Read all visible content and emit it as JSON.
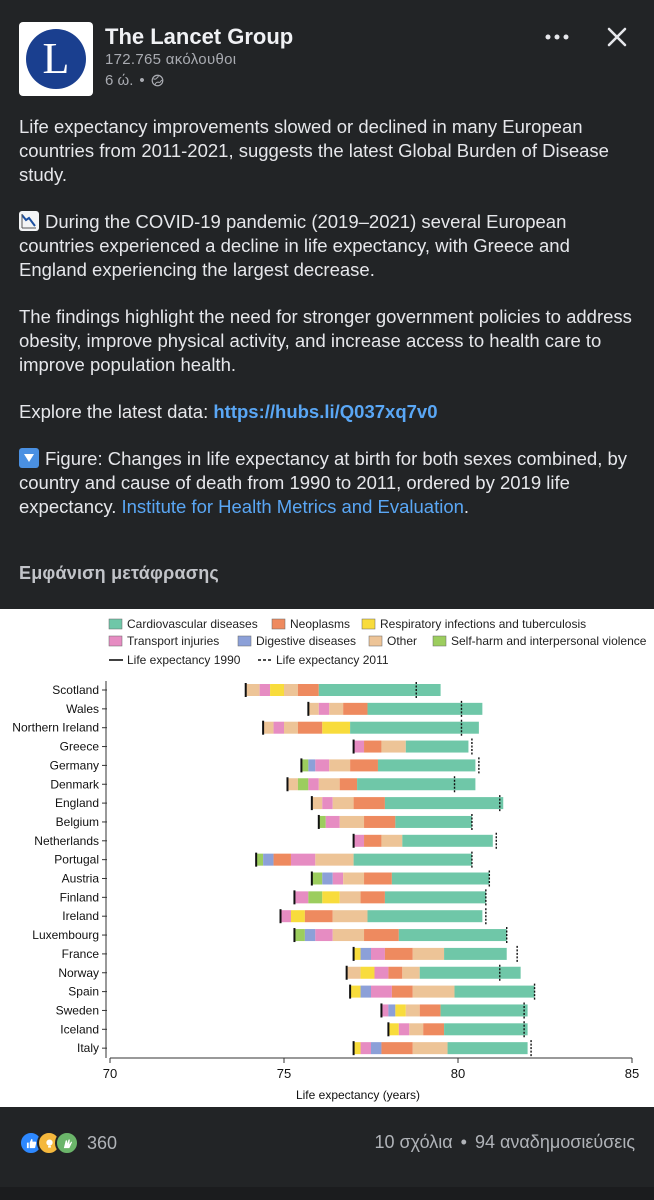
{
  "header": {
    "page_name": "The Lancet Group",
    "followers": "172.765 ακόλουθοι",
    "time": "6 ώ.",
    "separator": "•",
    "logo_letter": "L"
  },
  "post": {
    "p1": "Life expectancy improvements slowed or declined in many European countries from 2011-2021, suggests the latest Global Burden of Disease study.",
    "p2": "During the COVID-19 pandemic (2019–2021) several European countries experienced a decline in life expectancy, with Greece and England experiencing the largest decrease.",
    "p3": "The findings highlight the need for stronger government policies to address obesity, improve physical activity, and increase access to health care to improve population health.",
    "p4_prefix": "Explore the latest data: ",
    "p4_link": "https://hubs.li/Q037xq7v0",
    "p5_text": "Figure: Changes in life expectancy at birth for both sexes combined, by country and cause of death from 1990 to 2011, ordered by 2019 life expectancy.",
    "p5_link": "Institute for Health Metrics and Evaluation",
    "p5_end": ".",
    "see_translation": "Εμφάνιση μετάφρασης"
  },
  "chart_data": {
    "type": "bar",
    "xlabel": "Life expectancy (years)",
    "xlim": [
      70,
      85
    ],
    "x_ticks": [
      70,
      75,
      80,
      85
    ],
    "legend": [
      {
        "name": "Cardiovascular diseases",
        "color": "#6fc7a8"
      },
      {
        "name": "Neoplasms",
        "color": "#ee8a5f"
      },
      {
        "name": "Respiratory infections and tuberculosis",
        "color": "#f8dc3c"
      },
      {
        "name": "Transport injuries",
        "color": "#e68cc2"
      },
      {
        "name": "Digestive diseases",
        "color": "#8ca0d8"
      },
      {
        "name": "Other",
        "color": "#edc497"
      },
      {
        "name": "Self-harm and interpersonal violence",
        "color": "#9ccd5e"
      },
      {
        "name": "Life expectancy 1990",
        "line": "solid"
      },
      {
        "name": "Life expectancy 2011",
        "line": "dashed"
      }
    ],
    "countries": [
      {
        "name": "Scotland",
        "le1990": 73.9,
        "le2011": 78.8,
        "segments": [
          [
            "Other",
            0.4
          ],
          [
            "Transport injuries",
            0.3
          ],
          [
            "Respiratory infections and tuberculosis",
            0.4
          ],
          [
            "Other",
            0.4
          ],
          [
            "Neoplasms",
            0.6
          ],
          [
            "Cardiovascular diseases",
            3.5
          ]
        ]
      },
      {
        "name": "Wales",
        "le1990": 75.7,
        "le2011": 80.1,
        "segments": [
          [
            "Other",
            0.3
          ],
          [
            "Transport injuries",
            0.3
          ],
          [
            "Other",
            0.4
          ],
          [
            "Neoplasms",
            0.7
          ],
          [
            "Cardiovascular diseases",
            3.3
          ]
        ]
      },
      {
        "name": "Northern Ireland",
        "le1990": 74.4,
        "le2011": 80.1,
        "segments": [
          [
            "Other",
            0.3
          ],
          [
            "Transport injuries",
            0.3
          ],
          [
            "Other",
            0.4
          ],
          [
            "Neoplasms",
            0.7
          ],
          [
            "Respiratory infections and tuberculosis",
            0.8
          ],
          [
            "Cardiovascular diseases",
            3.7
          ]
        ]
      },
      {
        "name": "Greece",
        "le1990": 77.0,
        "le2011": 80.4,
        "segments": [
          [
            "Transport injuries",
            0.3
          ],
          [
            "Neoplasms",
            0.5
          ],
          [
            "Other",
            0.7
          ],
          [
            "Cardiovascular diseases",
            1.8
          ]
        ]
      },
      {
        "name": "Germany",
        "le1990": 75.5,
        "le2011": 80.6,
        "segments": [
          [
            "Self-harm and interpersonal violence",
            0.2
          ],
          [
            "Digestive diseases",
            0.2
          ],
          [
            "Transport injuries",
            0.4
          ],
          [
            "Other",
            0.6
          ],
          [
            "Neoplasms",
            0.8
          ],
          [
            "Cardiovascular diseases",
            2.8
          ]
        ]
      },
      {
        "name": "Denmark",
        "le1990": 75.1,
        "le2011": 79.9,
        "segments": [
          [
            "Other",
            0.3
          ],
          [
            "Self-harm and interpersonal violence",
            0.3
          ],
          [
            "Transport injuries",
            0.3
          ],
          [
            "Other",
            0.6
          ],
          [
            "Neoplasms",
            0.5
          ],
          [
            "Cardiovascular diseases",
            3.4
          ]
        ]
      },
      {
        "name": "England",
        "le1990": 75.8,
        "le2011": 81.2,
        "segments": [
          [
            "Other",
            0.3
          ],
          [
            "Transport injuries",
            0.3
          ],
          [
            "Other",
            0.6
          ],
          [
            "Neoplasms",
            0.9
          ],
          [
            "Cardiovascular diseases",
            3.4
          ]
        ]
      },
      {
        "name": "Belgium",
        "le1990": 76.0,
        "le2011": 80.4,
        "segments": [
          [
            "Self-harm and interpersonal violence",
            0.2
          ],
          [
            "Transport injuries",
            0.4
          ],
          [
            "Other",
            0.7
          ],
          [
            "Neoplasms",
            0.9
          ],
          [
            "Cardiovascular diseases",
            2.2
          ]
        ]
      },
      {
        "name": "Netherlands",
        "le1990": 77.0,
        "le2011": 81.1,
        "segments": [
          [
            "Transport injuries",
            0.3
          ],
          [
            "Neoplasms",
            0.5
          ],
          [
            "Other",
            0.6
          ],
          [
            "Cardiovascular diseases",
            2.6
          ]
        ]
      },
      {
        "name": "Portugal",
        "le1990": 74.2,
        "le2011": 80.4,
        "segments": [
          [
            "Self-harm and interpersonal violence",
            0.2
          ],
          [
            "Digestive diseases",
            0.3
          ],
          [
            "Neoplasms",
            0.5
          ],
          [
            "Transport injuries",
            0.7
          ],
          [
            "Other",
            1.1
          ],
          [
            "Cardiovascular diseases",
            3.4
          ]
        ]
      },
      {
        "name": "Austria",
        "le1990": 75.8,
        "le2011": 80.9,
        "segments": [
          [
            "Self-harm and interpersonal violence",
            0.3
          ],
          [
            "Digestive diseases",
            0.3
          ],
          [
            "Transport injuries",
            0.3
          ],
          [
            "Other",
            0.6
          ],
          [
            "Neoplasms",
            0.8
          ],
          [
            "Cardiovascular diseases",
            2.8
          ]
        ]
      },
      {
        "name": "Finland",
        "le1990": 75.3,
        "le2011": 80.8,
        "segments": [
          [
            "Transport injuries",
            0.4
          ],
          [
            "Self-harm and interpersonal violence",
            0.4
          ],
          [
            "Respiratory infections and tuberculosis",
            0.5
          ],
          [
            "Other",
            0.6
          ],
          [
            "Neoplasms",
            0.7
          ],
          [
            "Cardiovascular diseases",
            2.9
          ]
        ]
      },
      {
        "name": "Ireland",
        "le1990": 74.9,
        "le2011": 80.8,
        "segments": [
          [
            "Transport injuries",
            0.3
          ],
          [
            "Respiratory infections and tuberculosis",
            0.4
          ],
          [
            "Neoplasms",
            0.8
          ],
          [
            "Other",
            1.0
          ],
          [
            "Cardiovascular diseases",
            3.3
          ]
        ]
      },
      {
        "name": "Luxembourg",
        "le1990": 75.3,
        "le2011": 81.4,
        "segments": [
          [
            "Self-harm and interpersonal violence",
            0.3
          ],
          [
            "Digestive diseases",
            0.3
          ],
          [
            "Transport injuries",
            0.5
          ],
          [
            "Other",
            0.9
          ],
          [
            "Neoplasms",
            1.0
          ],
          [
            "Cardiovascular diseases",
            3.1
          ]
        ]
      },
      {
        "name": "France",
        "le1990": 77.0,
        "le2011": 81.7,
        "segments": [
          [
            "Respiratory infections and tuberculosis",
            0.2
          ],
          [
            "Digestive diseases",
            0.3
          ],
          [
            "Transport injuries",
            0.4
          ],
          [
            "Neoplasms",
            0.8
          ],
          [
            "Other",
            0.9
          ],
          [
            "Cardiovascular diseases",
            1.8
          ]
        ]
      },
      {
        "name": "Norway",
        "le1990": 76.8,
        "le2011": 81.2,
        "segments": [
          [
            "Other",
            0.4
          ],
          [
            "Respiratory infections and tuberculosis",
            0.4
          ],
          [
            "Transport injuries",
            0.4
          ],
          [
            "Neoplasms",
            0.4
          ],
          [
            "Other",
            0.5
          ],
          [
            "Cardiovascular diseases",
            2.9
          ]
        ]
      },
      {
        "name": "Spain",
        "le1990": 76.9,
        "le2011": 82.2,
        "segments": [
          [
            "Respiratory infections and tuberculosis",
            0.3
          ],
          [
            "Digestive diseases",
            0.3
          ],
          [
            "Transport injuries",
            0.6
          ],
          [
            "Neoplasms",
            0.6
          ],
          [
            "Other",
            1.2
          ],
          [
            "Cardiovascular diseases",
            2.3
          ]
        ]
      },
      {
        "name": "Sweden",
        "le1990": 77.8,
        "le2011": 81.9,
        "segments": [
          [
            "Transport injuries",
            0.2
          ],
          [
            "Digestive diseases",
            0.2
          ],
          [
            "Respiratory infections and tuberculosis",
            0.3
          ],
          [
            "Other",
            0.4
          ],
          [
            "Neoplasms",
            0.6
          ],
          [
            "Cardiovascular diseases",
            2.5
          ]
        ]
      },
      {
        "name": "Iceland",
        "le1990": 78.0,
        "le2011": 81.9,
        "segments": [
          [
            "Respiratory infections and tuberculosis",
            0.3
          ],
          [
            "Transport injuries",
            0.3
          ],
          [
            "Other",
            0.4
          ],
          [
            "Neoplasms",
            0.6
          ],
          [
            "Cardiovascular diseases",
            2.4
          ]
        ]
      },
      {
        "name": "Italy",
        "le1990": 77.0,
        "le2011": 82.1,
        "segments": [
          [
            "Respiratory infections and tuberculosis",
            0.2
          ],
          [
            "Transport injuries",
            0.3
          ],
          [
            "Digestive diseases",
            0.3
          ],
          [
            "Neoplasms",
            0.9
          ],
          [
            "Other",
            1.0
          ],
          [
            "Cardiovascular diseases",
            2.3
          ]
        ]
      }
    ]
  },
  "footer": {
    "reaction_count": "360",
    "comments": "10 σχόλια",
    "shares": "94 αναδημοσιεύσεις",
    "dot": "•"
  }
}
